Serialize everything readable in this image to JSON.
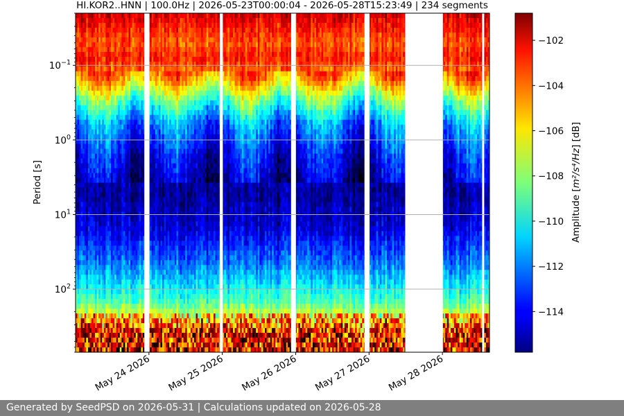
{
  "chart_data": {
    "type": "heatmap",
    "title": "HI.KOR2..HNN | 100.0Hz | 2026-05-23T00:00:04 - 2026-05-28T15:23:49 | 234 segments",
    "ylabel": "Period [s]",
    "y_scale": "log",
    "y_inverted": true,
    "ylim": [
      0.02,
      700
    ],
    "y_ticks": [
      {
        "value": 0.1,
        "base": "10",
        "exp": "−1"
      },
      {
        "value": 1,
        "base": "10",
        "exp": "0"
      },
      {
        "value": 10,
        "base": "10",
        "exp": "1"
      },
      {
        "value": 100,
        "base": "10",
        "exp": "2"
      }
    ],
    "x_type": "date",
    "xlim": [
      "2026-05-23T00:00:04",
      "2026-05-28T15:23:49"
    ],
    "x_ticks": [
      {
        "value": "2026-05-24",
        "label": "May 24 2026"
      },
      {
        "value": "2026-05-25",
        "label": "May 25 2026"
      },
      {
        "value": "2026-05-26",
        "label": "May 26 2026"
      },
      {
        "value": "2026-05-27",
        "label": "May 27 2026"
      },
      {
        "value": "2026-05-28",
        "label": "May 28 2026"
      }
    ],
    "grid": "horizontal",
    "colormap": "jet",
    "colorbar": {
      "label_prefix": "Amplitude [",
      "label_unit": "m²/s⁴/Hz",
      "label_suffix": "] [dB]",
      "range": [
        -115.8,
        -100.8
      ],
      "ticks": [
        -102,
        -104,
        -106,
        -108,
        -110,
        -112,
        -114
      ]
    },
    "segments": 234,
    "data_gaps": [
      {
        "start": "2026-05-23T22:30",
        "end": "2026-05-24T00:10"
      },
      {
        "start": "2026-05-24T23:10",
        "end": "2026-05-25T00:10"
      },
      {
        "start": "2026-05-25T22:30",
        "end": "2026-05-26T00:05"
      },
      {
        "start": "2026-05-26T22:30",
        "end": "2026-05-26T23:30"
      },
      {
        "start": "2026-05-26T23:00",
        "end": "2026-05-27T00:10"
      },
      {
        "start": "2026-05-27T11:50",
        "end": "2026-05-28T00:10"
      },
      {
        "start": "2026-05-28T13:00",
        "end": "2026-05-28T13:40"
      }
    ],
    "amplitude_profile_db": [
      {
        "period_s": 0.02,
        "db": -102
      },
      {
        "period_s": 0.05,
        "db": -104
      },
      {
        "period_s": 0.08,
        "db": -103
      },
      {
        "period_s": 0.15,
        "db": -105
      },
      {
        "period_s": 0.3,
        "db": -109
      },
      {
        "period_s": 0.6,
        "db": -112
      },
      {
        "period_s": 1.5,
        "db": -114
      },
      {
        "period_s": 5,
        "db": -115.5
      },
      {
        "period_s": 15,
        "db": -114.5
      },
      {
        "period_s": 50,
        "db": -112
      },
      {
        "period_s": 150,
        "db": -109
      },
      {
        "period_s": 400,
        "db": -104
      }
    ]
  },
  "footer": {
    "text": "Generated by SeedPSD on 2026-05-31 | Calculations updated on 2026-05-28"
  }
}
